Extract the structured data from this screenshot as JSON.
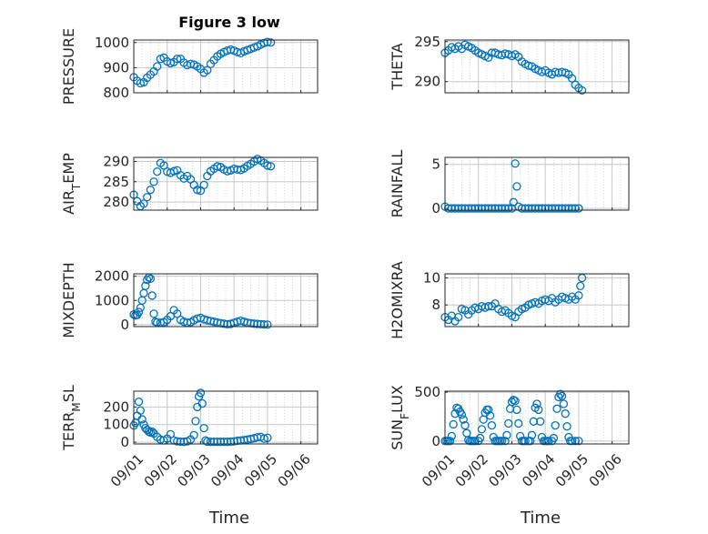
{
  "figure": {
    "title": "Figure 3 low"
  },
  "colors": {
    "marker": "#0072BD",
    "axis": "#262626",
    "grid": "#c8c8c8",
    "background": "#ffffff"
  },
  "chart_data": [
    {
      "type": "scatter",
      "id": "pressure",
      "ylabel": "PRESSURE",
      "title": "Figure 3 low",
      "ylim": [
        800,
        1010
      ],
      "yticks": [
        800,
        900,
        1000
      ],
      "xlim": [
        0,
        4.2
      ],
      "x": [
        0.0,
        0.1,
        0.2,
        0.3,
        0.4,
        0.5,
        0.6,
        0.7,
        0.8,
        0.9,
        1.0,
        1.1,
        1.2,
        1.3,
        1.4,
        1.5,
        1.6,
        1.7,
        1.8,
        1.9,
        2.0,
        2.1,
        2.2,
        2.3,
        2.4,
        2.5,
        2.6,
        2.7,
        2.8,
        2.9,
        3.0,
        3.1,
        3.2,
        3.3,
        3.4,
        3.5,
        3.6,
        3.7,
        3.8,
        3.9,
        4.0,
        4.1
      ],
      "y": [
        862,
        848,
        838,
        842,
        860,
        872,
        885,
        905,
        935,
        940,
        925,
        918,
        922,
        935,
        935,
        920,
        910,
        915,
        912,
        905,
        895,
        880,
        890,
        915,
        930,
        945,
        955,
        962,
        968,
        972,
        968,
        962,
        958,
        965,
        970,
        975,
        980,
        985,
        992,
        998,
        1002,
        1000
      ]
    },
    {
      "type": "scatter",
      "id": "theta",
      "ylabel": "THETA",
      "ylim": [
        288.6,
        295.2
      ],
      "yticks": [
        290,
        295
      ],
      "xlim": [
        0,
        4.2
      ],
      "x": [
        0.0,
        0.1,
        0.2,
        0.3,
        0.4,
        0.5,
        0.6,
        0.7,
        0.8,
        0.9,
        1.0,
        1.1,
        1.2,
        1.3,
        1.4,
        1.5,
        1.6,
        1.7,
        1.8,
        1.9,
        2.0,
        2.1,
        2.2,
        2.3,
        2.4,
        2.5,
        2.6,
        2.7,
        2.8,
        2.9,
        3.0,
        3.1,
        3.2,
        3.3,
        3.4,
        3.5,
        3.6,
        3.7,
        3.8,
        3.9,
        4.0,
        4.1
      ],
      "y": [
        293.6,
        293.9,
        294.3,
        294.1,
        294.4,
        294.1,
        294.6,
        294.4,
        294.2,
        293.9,
        293.6,
        293.4,
        293.2,
        293.0,
        293.6,
        293.6,
        293.4,
        293.3,
        293.5,
        293.4,
        293.2,
        293.4,
        293.1,
        292.5,
        292.2,
        292.0,
        291.9,
        291.6,
        291.4,
        291.2,
        291.4,
        291.1,
        290.9,
        291.2,
        291.1,
        291.2,
        291.1,
        290.9,
        290.4,
        289.6,
        289.2,
        288.9
      ]
    },
    {
      "type": "scatter",
      "id": "air-temp",
      "ylabel": "AIR_TEMP",
      "ylim": [
        278,
        291
      ],
      "yticks": [
        280,
        285,
        290
      ],
      "xlim": [
        0,
        4.2
      ],
      "x": [
        0.0,
        0.1,
        0.2,
        0.3,
        0.4,
        0.5,
        0.6,
        0.7,
        0.8,
        0.9,
        1.0,
        1.1,
        1.2,
        1.3,
        1.4,
        1.5,
        1.6,
        1.7,
        1.8,
        1.9,
        2.0,
        2.1,
        2.2,
        2.3,
        2.4,
        2.5,
        2.6,
        2.7,
        2.8,
        2.9,
        3.0,
        3.1,
        3.2,
        3.3,
        3.4,
        3.5,
        3.6,
        3.7,
        3.8,
        3.9,
        4.0,
        4.1
      ],
      "y": [
        281.8,
        280.2,
        279.0,
        279.6,
        281.2,
        283.0,
        285.0,
        287.5,
        289.6,
        289.0,
        287.5,
        287.2,
        287.6,
        287.8,
        286.6,
        285.8,
        286.4,
        285.6,
        284.2,
        283.0,
        282.8,
        284.2,
        286.4,
        287.6,
        288.2,
        288.8,
        288.6,
        288.0,
        287.6,
        287.8,
        288.2,
        288.0,
        287.9,
        288.3,
        288.9,
        289.4,
        290.0,
        290.6,
        290.2,
        289.6,
        289.0,
        288.8
      ]
    },
    {
      "type": "scatter",
      "id": "rainfall",
      "ylabel": "RAINFALL",
      "ylim": [
        -0.2,
        5.8
      ],
      "yticks": [
        0,
        5
      ],
      "xlim": [
        0,
        4.2
      ],
      "x": [
        0.0,
        0.1,
        0.2,
        0.3,
        0.4,
        0.5,
        0.6,
        0.7,
        0.8,
        0.9,
        1.0,
        1.1,
        1.2,
        1.3,
        1.4,
        1.5,
        1.6,
        1.7,
        1.8,
        1.9,
        2.0,
        2.05,
        2.1,
        2.15,
        2.2,
        2.3,
        2.4,
        2.5,
        2.6,
        2.7,
        2.8,
        2.9,
        3.0,
        3.1,
        3.2,
        3.3,
        3.4,
        3.5,
        3.6,
        3.7,
        3.8,
        3.9,
        4.0
      ],
      "y": [
        0.2,
        0,
        0,
        0,
        0,
        0,
        0,
        0,
        0,
        0,
        0,
        0,
        0,
        0,
        0,
        0,
        0,
        0,
        0,
        0,
        0,
        0.7,
        5.1,
        2.5,
        0.2,
        0,
        0,
        0,
        0,
        0,
        0,
        0,
        0,
        0,
        0,
        0,
        0,
        0,
        0,
        0,
        0,
        0,
        0
      ]
    },
    {
      "type": "scatter",
      "id": "mixdepth",
      "ylabel": "MIXDEPTH",
      "ylim": [
        -80,
        2100
      ],
      "yticks": [
        0,
        1000,
        2000
      ],
      "xlim": [
        0,
        4.2
      ],
      "x": [
        0.0,
        0.05,
        0.1,
        0.15,
        0.2,
        0.25,
        0.3,
        0.35,
        0.4,
        0.45,
        0.5,
        0.55,
        0.6,
        0.65,
        0.7,
        0.8,
        0.9,
        1.0,
        1.1,
        1.2,
        1.3,
        1.4,
        1.5,
        1.6,
        1.7,
        1.8,
        1.9,
        2.0,
        2.1,
        2.2,
        2.3,
        2.4,
        2.5,
        2.6,
        2.7,
        2.8,
        2.9,
        3.0,
        3.1,
        3.2,
        3.3,
        3.4,
        3.5,
        3.6,
        3.7,
        3.8,
        3.9,
        4.0
      ],
      "y": [
        420,
        380,
        400,
        520,
        700,
        1000,
        1300,
        1600,
        1850,
        1950,
        1900,
        1200,
        450,
        120,
        90,
        80,
        100,
        200,
        350,
        600,
        450,
        200,
        120,
        80,
        100,
        180,
        250,
        280,
        220,
        180,
        150,
        120,
        90,
        60,
        40,
        20,
        30,
        80,
        120,
        160,
        120,
        80,
        60,
        40,
        30,
        20,
        10,
        0
      ]
    },
    {
      "type": "scatter",
      "id": "h2omixra",
      "ylabel": "H2OMIXRA",
      "ylim": [
        6.4,
        10.3
      ],
      "yticks": [
        8,
        10
      ],
      "xlim": [
        0,
        4.2
      ],
      "x": [
        0.0,
        0.1,
        0.2,
        0.3,
        0.4,
        0.5,
        0.6,
        0.7,
        0.8,
        0.9,
        1.0,
        1.1,
        1.2,
        1.3,
        1.4,
        1.5,
        1.6,
        1.7,
        1.8,
        1.9,
        2.0,
        2.1,
        2.2,
        2.3,
        2.4,
        2.5,
        2.6,
        2.7,
        2.8,
        2.9,
        3.0,
        3.1,
        3.2,
        3.3,
        3.4,
        3.5,
        3.6,
        3.7,
        3.8,
        3.9,
        4.0,
        4.05,
        4.1
      ],
      "y": [
        7.1,
        6.9,
        7.2,
        6.8,
        7.1,
        7.7,
        7.6,
        7.3,
        7.6,
        7.8,
        7.7,
        7.9,
        7.8,
        7.9,
        7.9,
        8.1,
        7.7,
        7.5,
        7.6,
        7.4,
        7.2,
        7.1,
        7.5,
        7.7,
        7.8,
        8.0,
        8.1,
        8.2,
        8.1,
        8.3,
        8.4,
        8.3,
        8.5,
        8.2,
        8.4,
        8.6,
        8.5,
        8.4,
        8.6,
        8.4,
        8.7,
        9.4,
        10.0
      ]
    },
    {
      "type": "scatter",
      "id": "terr-msl",
      "ylabel": "TERR_MSL",
      "ylim": [
        -10,
        290
      ],
      "yticks": [
        0,
        100,
        200
      ],
      "xlim": [
        0,
        4.2
      ],
      "x": [
        0.0,
        0.05,
        0.1,
        0.15,
        0.2,
        0.25,
        0.3,
        0.35,
        0.4,
        0.45,
        0.5,
        0.55,
        0.6,
        0.7,
        0.8,
        0.9,
        1.0,
        1.1,
        1.2,
        1.3,
        1.4,
        1.5,
        1.6,
        1.7,
        1.8,
        1.85,
        1.9,
        1.95,
        2.0,
        2.05,
        2.1,
        2.15,
        2.2,
        2.3,
        2.4,
        2.5,
        2.6,
        2.7,
        2.8,
        2.9,
        3.0,
        3.1,
        3.2,
        3.3,
        3.4,
        3.5,
        3.6,
        3.7,
        3.8,
        3.9,
        4.0
      ],
      "y": [
        95,
        110,
        150,
        230,
        180,
        130,
        100,
        80,
        70,
        60,
        55,
        60,
        50,
        30,
        15,
        10,
        20,
        45,
        10,
        5,
        3,
        2,
        5,
        15,
        40,
        120,
        200,
        260,
        280,
        220,
        80,
        10,
        3,
        2,
        2,
        2,
        2,
        2,
        2,
        3,
        5,
        8,
        10,
        12,
        15,
        18,
        22,
        28,
        30,
        20,
        25
      ]
    },
    {
      "type": "scatter",
      "id": "sun-flux",
      "ylabel": "SUN_FLUX",
      "ylim": [
        -30,
        510
      ],
      "yticks": [
        0,
        500
      ],
      "xlim": [
        0,
        4.2
      ],
      "x": [
        0.0,
        0.05,
        0.1,
        0.15,
        0.2,
        0.25,
        0.3,
        0.35,
        0.4,
        0.45,
        0.5,
        0.55,
        0.6,
        0.65,
        0.7,
        0.75,
        0.8,
        0.85,
        0.9,
        1.0,
        1.05,
        1.1,
        1.15,
        1.2,
        1.25,
        1.3,
        1.35,
        1.4,
        1.45,
        1.5,
        1.55,
        1.6,
        1.65,
        1.7,
        1.8,
        1.85,
        1.9,
        1.95,
        2.0,
        2.05,
        2.1,
        2.15,
        2.2,
        2.25,
        2.3,
        2.35,
        2.4,
        2.5,
        2.55,
        2.6,
        2.65,
        2.7,
        2.75,
        2.8,
        2.85,
        2.9,
        2.95,
        3.0,
        3.05,
        3.1,
        3.2,
        3.25,
        3.3,
        3.35,
        3.4,
        3.45,
        3.5,
        3.55,
        3.6,
        3.65,
        3.7,
        3.75,
        3.8,
        3.9,
        4.0
      ],
      "y": [
        0,
        0,
        0,
        0,
        50,
        170,
        280,
        340,
        330,
        300,
        270,
        220,
        160,
        80,
        10,
        0,
        0,
        0,
        0,
        0,
        30,
        120,
        220,
        290,
        320,
        320,
        260,
        160,
        40,
        0,
        0,
        0,
        0,
        0,
        0,
        60,
        180,
        330,
        400,
        420,
        410,
        320,
        180,
        50,
        0,
        0,
        0,
        0,
        0,
        60,
        200,
        340,
        380,
        320,
        200,
        40,
        0,
        0,
        0,
        0,
        0,
        30,
        160,
        330,
        450,
        480,
        460,
        380,
        280,
        150,
        40,
        0,
        0,
        0,
        0
      ]
    }
  ],
  "xaxis": {
    "label": "Time",
    "tick_values": [
      0,
      1,
      2,
      3,
      4,
      5
    ],
    "tick_labels": [
      "09/01",
      "09/02",
      "09/03",
      "09/04",
      "09/05",
      "09/06"
    ],
    "xlim": [
      0,
      4.2
    ]
  }
}
